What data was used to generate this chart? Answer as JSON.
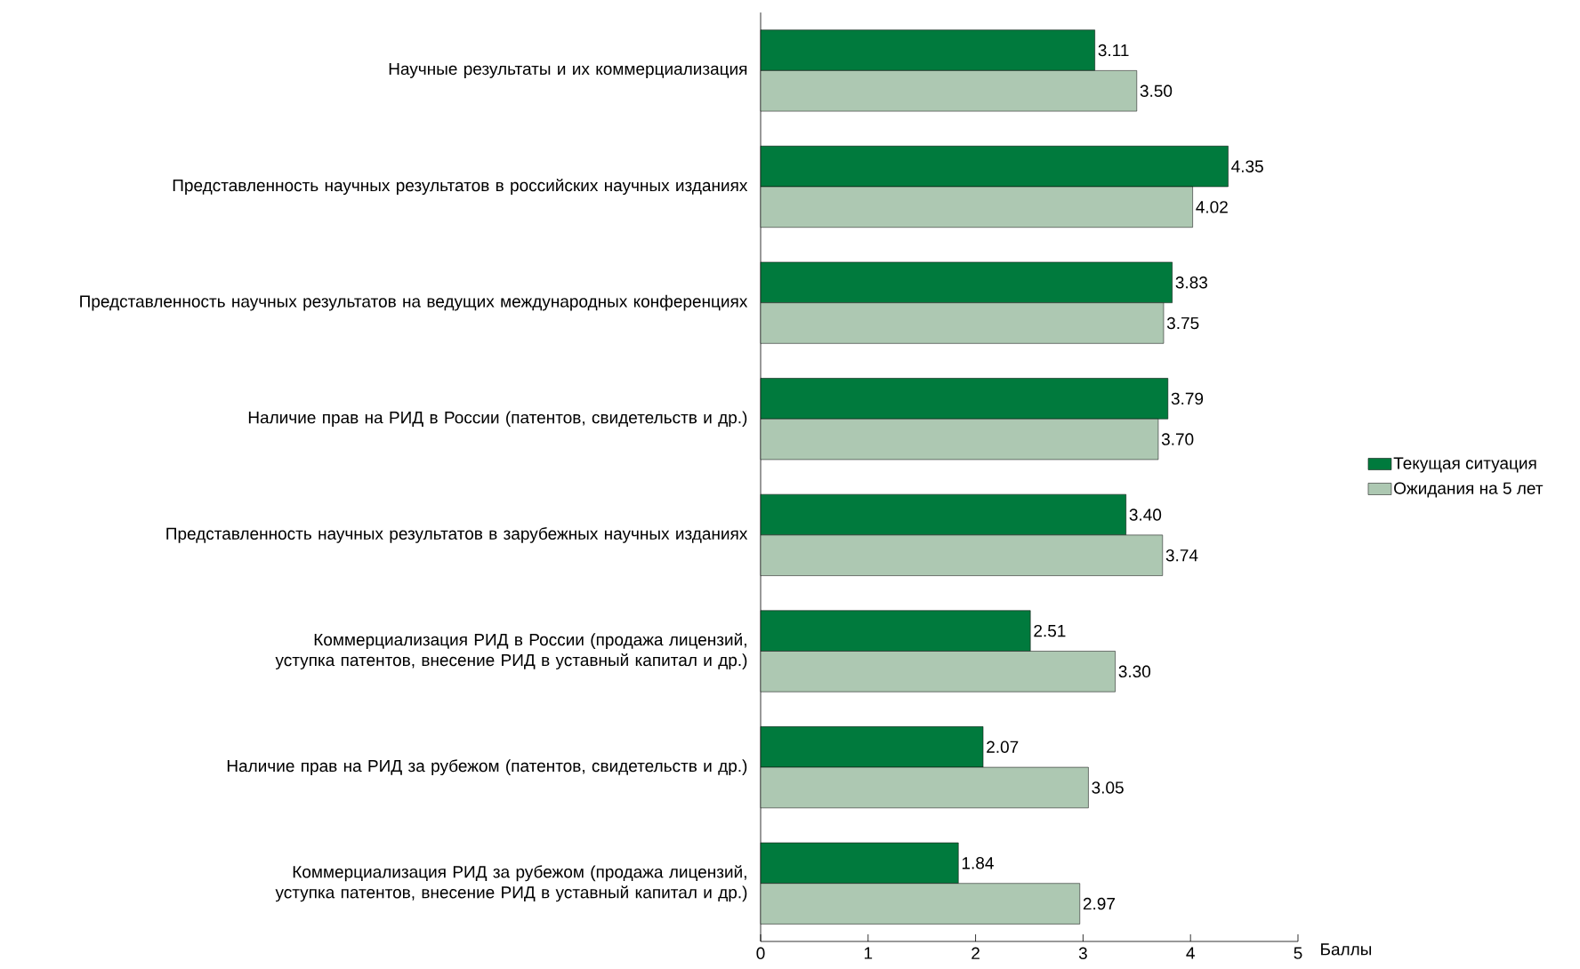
{
  "chart_data": {
    "type": "bar",
    "orientation": "horizontal",
    "xlabel": "Баллы",
    "categories": [
      "Научные результаты и их коммерциализация",
      "Представленность научных результатов в российских научных изданиях",
      "Представленность научных результатов на ведущих международных конференциях",
      "Наличие прав на РИД в России (патентов, свидетельств и др.)",
      "Представленность научных результатов в зарубежных научных изданиях",
      "Коммерциализация РИД  в России (продажа лицензий, уступка патентов, внесение РИД в уставный капитал и др.)",
      "Наличие прав на РИД за рубежом (патентов, свидетельств и др.)",
      "Коммерциализация РИД за рубежом (продажа лицензий, уступка патентов, внесение РИД в уставный капитал и др.)"
    ],
    "series": [
      {
        "name": "Текущая ситуация",
        "color": "#007a3d",
        "values": [
          3.11,
          4.35,
          3.83,
          3.79,
          3.4,
          2.51,
          2.07,
          1.84
        ],
        "value_labels": [
          "3.11",
          "4.35",
          "3.83",
          "3.79",
          "3.40",
          "2.51",
          "2.07",
          "1.84"
        ]
      },
      {
        "name": "Ожидания на 5 лет",
        "color": "#adc8b2",
        "values": [
          3.5,
          4.02,
          3.75,
          3.7,
          3.74,
          3.3,
          3.05,
          2.97
        ],
        "value_labels": [
          "3.50",
          "4.02",
          "3.75",
          "3.70",
          "3.74",
          "3.30",
          "3.05",
          "2.97"
        ]
      }
    ],
    "xlim": [
      0,
      5
    ],
    "xticks": [
      0,
      1,
      2,
      3,
      4,
      5
    ],
    "legend": "right",
    "grid": false
  }
}
